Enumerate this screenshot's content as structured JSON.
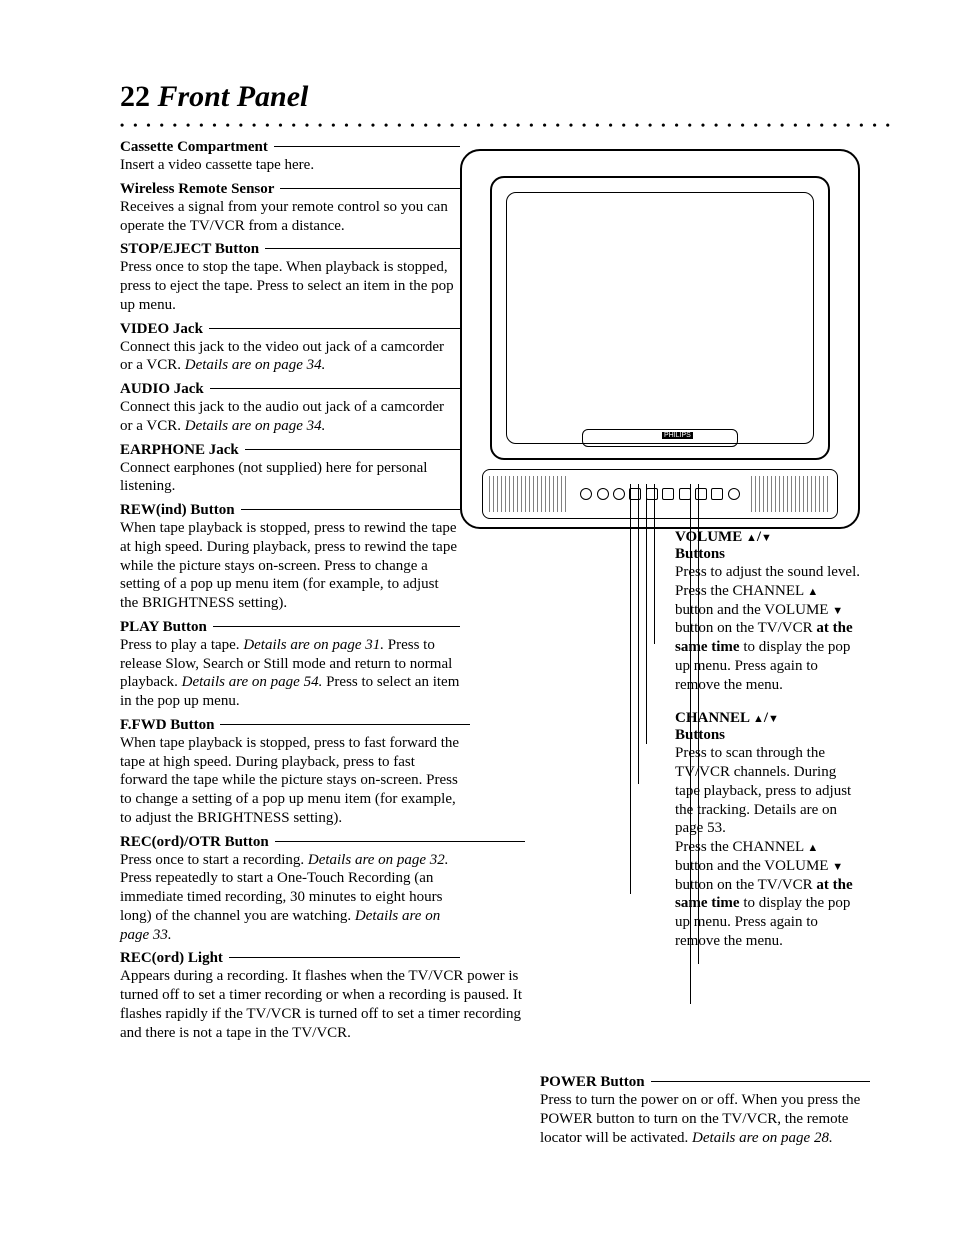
{
  "page_number": "22",
  "page_title": "Front Panel",
  "dot_row": "• • • • • • • • • • • • • • • • • • • • • • • • • • • • • • • • • • • • • • • • • • • • • • • • • • • • • • • • • • • • • • • • • • • • • • • • • • • • • • • • • • • • • • • • • • • • • • • • • • • • • • • • • • • •",
  "tv_logo": "PHILIPS",
  "left": [
    {
      "title": "Cassette Compartment",
      "body": "Insert a video cassette tape here."
    },
    {
      "title": "Wireless Remote Sensor",
      "body": "Receives a signal from your remote control so you can operate the TV/VCR from a distance."
    },
    {
      "title": "STOP/EJECT Button",
      "body": "Press once to stop the tape. When playback is stopped, press to eject the tape. Press to select an item in the pop up menu."
    },
    {
      "title": "VIDEO Jack",
      "body": "Connect this jack to the video out jack of a camcorder or a VCR.",
      "ital": "Details are on page 34."
    },
    {
      "title": "AUDIO Jack",
      "body": "Connect this jack to the audio out jack of a camcorder or a VCR.",
      "ital": "Details are on page 34."
    },
    {
      "title": "EARPHONE Jack",
      "body": "Connect earphones (not supplied) here for personal listening."
    },
    {
      "title": "REW(ind) Button",
      "body": "When tape playback is stopped, press to rewind the tape at high speed. During playback, press to rewind the tape while the picture stays on-screen. Press to change a setting of a pop up menu item (for example, to adjust the BRIGHTNESS setting)."
    },
    {
      "title": "PLAY Button",
      "body_html": "Press to play a tape. <span class=\"ital\">Details are on page 31.</span> Press to release Slow, Search or Still mode and return to normal playback. <span class=\"ital\">Details are on page 54.</span> Press to select an item in the pop up menu."
    },
    {
      "title": "F.FWD Button",
      "body": "When tape playback is stopped, press to fast forward the tape at high speed. During playback, press to fast forward the tape while the picture stays on-screen. Press to change a setting of a pop up menu item (for example, to adjust the BRIGHTNESS setting)."
    },
    {
      "title": "REC(ord)/OTR Button",
      "body_html": "Press once to start a recording. <span class=\"ital\">Details are on page 32.</span> Press repeatedly to start a One-Touch Recording (an immediate timed recording, 30 minutes to eight hours long) of the channel you are watching. <span class=\"ital\">Details are on page 33.</span>"
    },
    {
      "title": "REC(ord) Light",
      "body": "Appears during a recording. It flashes when the TV/VCR power is turned off to set a timer recording or when a recording is paused. It flashes rapidly if the TV/VCR is turned off to set a timer recording and there is not a tape in the TV/VCR.",
      "wide": true
    }
  ],
  "right": {
    "volume": {
      "title_prefix": "VOLUME ",
      "title_suffix": " Buttons",
      "body_html": "Press to adjust the sound level.<br>Press the CHANNEL <span class=\"tri-up\"></span> button and the VOLUME <span class=\"tri-dn\"></span> button on the TV/VCR <span class=\"bold\">at the same time</span> to display the pop up menu. Press again to remove the menu."
    },
    "channel": {
      "title_prefix": "CHANNEL ",
      "title_suffix": " Buttons",
      "body_html": "Press to scan through the TV/VCR channels. During tape playback, press to adjust the tracking. <span class=\"ital\">Details are on page 53.</span><br>Press the CHANNEL <span class=\"tri-up\"></span> button and the VOLUME <span class=\"tri-dn\"></span> button on the TV/VCR <span class=\"bold\">at the same time</span> to display the pop up menu. Press again to remove the menu."
    }
  },
  "power": {
    "title": "POWER Button",
    "body_html": "Press to turn the power on or off. When you press the POWER button to turn on the TV/VCR, the remote locator will be activated. <span class=\"ital\">Details are on page 28.</span>"
  },
  "colors": {
    "text": "#000000",
    "bg": "#ffffff"
  }
}
